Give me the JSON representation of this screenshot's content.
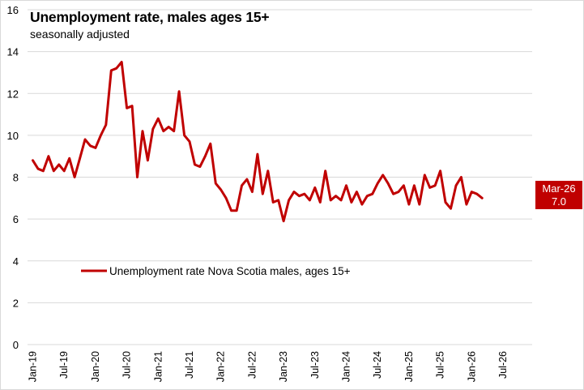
{
  "chart_data": {
    "type": "line",
    "title": "Unemployment rate, males ages 15+",
    "subtitle": "seasonally adjusted",
    "xlabel": "",
    "ylabel": "",
    "ylim": [
      0,
      16
    ],
    "yticks": [
      0,
      2,
      4,
      6,
      8,
      10,
      12,
      14,
      16
    ],
    "ytick_labels": [
      "0",
      "2",
      "4",
      "6",
      "8",
      "10",
      "12",
      "14",
      "16"
    ],
    "x_start": "Jan-19",
    "x_range_months": [
      0,
      90
    ],
    "xtick_labels": [
      "Jan-19",
      "Jul-19",
      "Jan-20",
      "Jul-20",
      "Jan-21",
      "Jul-21",
      "Jan-22",
      "Jul-22",
      "Jan-23",
      "Jul-23",
      "Jan-24",
      "Jul-24",
      "Jan-25",
      "Jul-25",
      "Jan-26",
      "Jul-26"
    ],
    "xtick_month_index": [
      0,
      6,
      12,
      18,
      24,
      30,
      36,
      42,
      48,
      54,
      60,
      66,
      72,
      78,
      84,
      90
    ],
    "grid": true,
    "legend_position": "lower-left (inside plot)",
    "series": [
      {
        "name": "Unemployment rate Nova Scotia males, ages 15+",
        "color": "#c00000",
        "values": [
          8.8,
          8.4,
          8.3,
          9.0,
          8.3,
          8.6,
          8.3,
          8.9,
          8.0,
          8.9,
          9.8,
          9.5,
          9.4,
          10.0,
          10.5,
          13.1,
          13.2,
          13.5,
          11.3,
          11.4,
          8.0,
          10.2,
          8.8,
          10.3,
          10.8,
          10.2,
          10.4,
          10.2,
          12.1,
          10.0,
          9.7,
          8.6,
          8.5,
          9.0,
          9.6,
          7.7,
          7.4,
          7.0,
          6.4,
          6.4,
          7.6,
          7.9,
          7.3,
          9.1,
          7.2,
          8.3,
          6.8,
          6.9,
          5.9,
          6.9,
          7.3,
          7.1,
          7.2,
          6.9,
          7.5,
          6.8,
          8.3,
          6.9,
          7.1,
          6.9,
          7.6,
          6.8,
          7.3,
          6.7,
          7.1,
          7.2,
          7.7,
          8.1,
          7.7,
          7.2,
          7.3,
          7.6,
          6.7,
          7.6,
          6.7,
          8.1,
          7.5,
          7.6,
          8.3,
          6.8,
          6.5,
          7.6,
          8.0,
          6.7,
          7.3,
          7.2,
          7.0
        ]
      }
    ],
    "annotations": [
      {
        "label_line1": "Mar-26",
        "label_line2": "7.0",
        "background": "#c00000",
        "text_color": "#ffffff",
        "position": "right of last point"
      }
    ]
  }
}
